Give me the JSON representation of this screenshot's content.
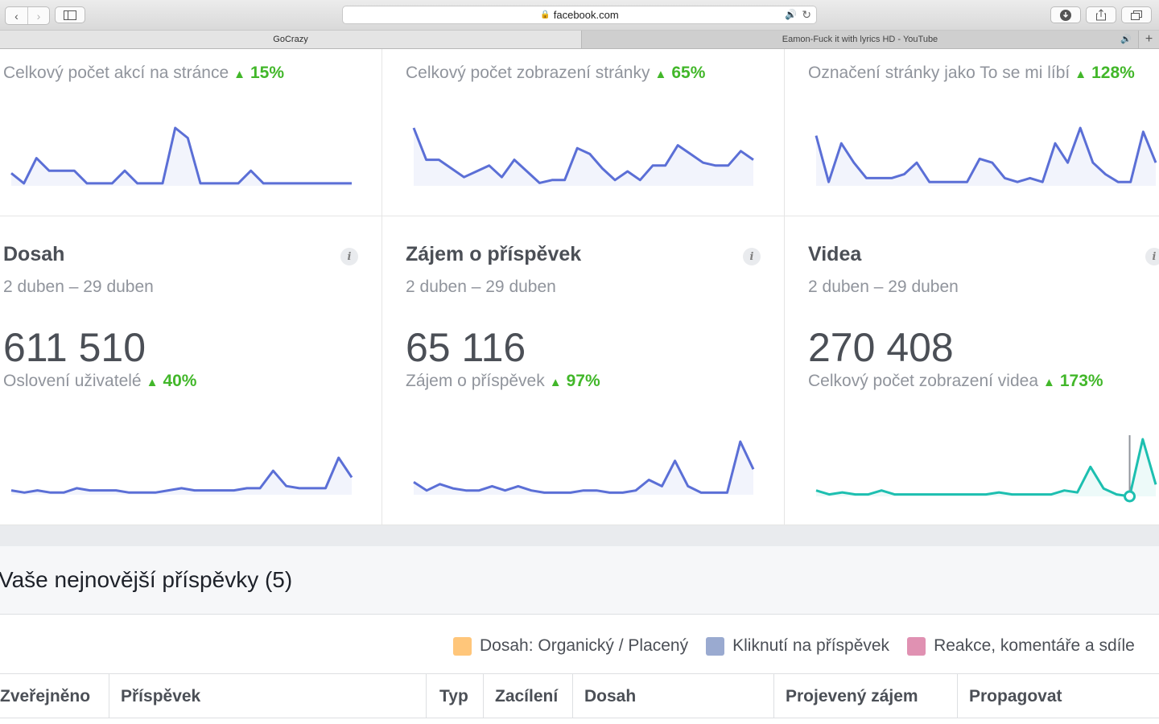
{
  "browser": {
    "url": "facebook.com",
    "tabs": [
      {
        "label": "GoCrazy"
      },
      {
        "label": "Eamon-Fuck it with lyrics HD - YouTube"
      }
    ],
    "new_tab_symbol": "+"
  },
  "top_row": [
    {
      "metric_label": "Celkový počet akcí na stránce",
      "change": "15%",
      "color": "#5b6fd6",
      "values": [
        5,
        1,
        11,
        6,
        6,
        6,
        1,
        1,
        1,
        6,
        1,
        1,
        1,
        23,
        19,
        1,
        1,
        1,
        1,
        6,
        1,
        1,
        1,
        1,
        1,
        1,
        1,
        1
      ]
    },
    {
      "metric_label": "Celkový počet zobrazení stránky",
      "change": "65%",
      "color": "#5b6fd6",
      "values": [
        20,
        9,
        9,
        6,
        3,
        5,
        7,
        3,
        9,
        5,
        1,
        2,
        2,
        13,
        11,
        6,
        2,
        5,
        2,
        7,
        7,
        14,
        11,
        8,
        7,
        7,
        12,
        9
      ]
    },
    {
      "metric_label": "Označení stránky jako To se mi líbí",
      "change": "128%",
      "color": "#5b6fd6",
      "values": [
        13,
        1,
        11,
        6,
        2,
        2,
        2,
        3,
        6,
        1,
        1,
        1,
        1,
        7,
        6,
        2,
        1,
        2,
        1,
        11,
        6,
        15,
        6,
        3,
        1,
        1,
        14,
        6
      ]
    }
  ],
  "cards": [
    {
      "title": "Dosah",
      "date_range": "2 duben – 29 duben",
      "value": "611 510",
      "metric_label": "Oslovení uživatelé",
      "change": "40%",
      "color": "#5b6fd6",
      "values": [
        2,
        1,
        2,
        1,
        1,
        3,
        2,
        2,
        2,
        1,
        1,
        1,
        2,
        3,
        2,
        2,
        2,
        2,
        3,
        3,
        11,
        4,
        3,
        3,
        3,
        17,
        8
      ]
    },
    {
      "title": "Zájem o příspěvek",
      "date_range": "2 duben – 29 duben",
      "value": "65 116",
      "metric_label": "Zájem o příspěvek",
      "change": "97%",
      "color": "#5b6fd6",
      "values": [
        6,
        2,
        5,
        3,
        2,
        2,
        4,
        2,
        4,
        2,
        1,
        1,
        1,
        2,
        2,
        1,
        1,
        2,
        7,
        4,
        16,
        4,
        1,
        1,
        1,
        25,
        12
      ]
    },
    {
      "title": "Videa",
      "date_range": "2 duben – 29 duben",
      "value": "270 408",
      "metric_label": "Celkový počet zobrazení videa",
      "change": "173%",
      "color": "#1dbfb0",
      "values": [
        3,
        1,
        2,
        1,
        1,
        3,
        1,
        1,
        1,
        1,
        1,
        1,
        1,
        1,
        2,
        1,
        1,
        1,
        1,
        3,
        2,
        15,
        4,
        1,
        0,
        29,
        6
      ]
    }
  ],
  "posts": {
    "title": "Vaše nejnovější příspěvky (5)",
    "legend": [
      {
        "label": "Dosah: Organický / Placený",
        "color": "#ffc67a"
      },
      {
        "label": "Kliknutí na příspěvek",
        "color": "#9aaad0"
      },
      {
        "label": "Reakce, komentáře a sdíle",
        "color": "#e091b2"
      }
    ],
    "columns": [
      "Zveřejněno",
      "Příspěvek",
      "Typ",
      "Zacílení",
      "Dosah",
      "Projevený zájem",
      "Propagovat"
    ]
  }
}
